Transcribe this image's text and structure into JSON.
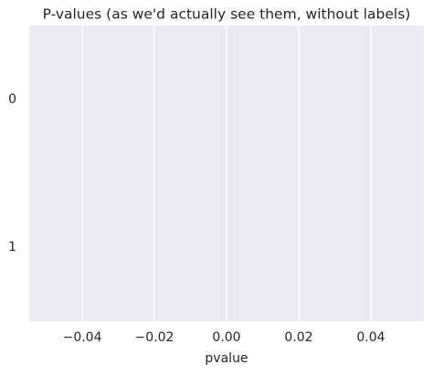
{
  "chart_data": {
    "type": "barh",
    "title": "P-values (as we'd actually see them, without labels)",
    "categories": [
      "0",
      "1"
    ],
    "values": [
      0,
      0
    ],
    "color": "#4c72b0",
    "xlabel": "pvalue",
    "xlim": [
      -0.0547,
      0.0547
    ],
    "xticks": [
      {
        "value": -0.04,
        "label": "−0.04"
      },
      {
        "value": -0.02,
        "label": "−0.02"
      },
      {
        "value": 0,
        "label": "0.00"
      },
      0.02,
      0.04
    ],
    "grid": true
  }
}
